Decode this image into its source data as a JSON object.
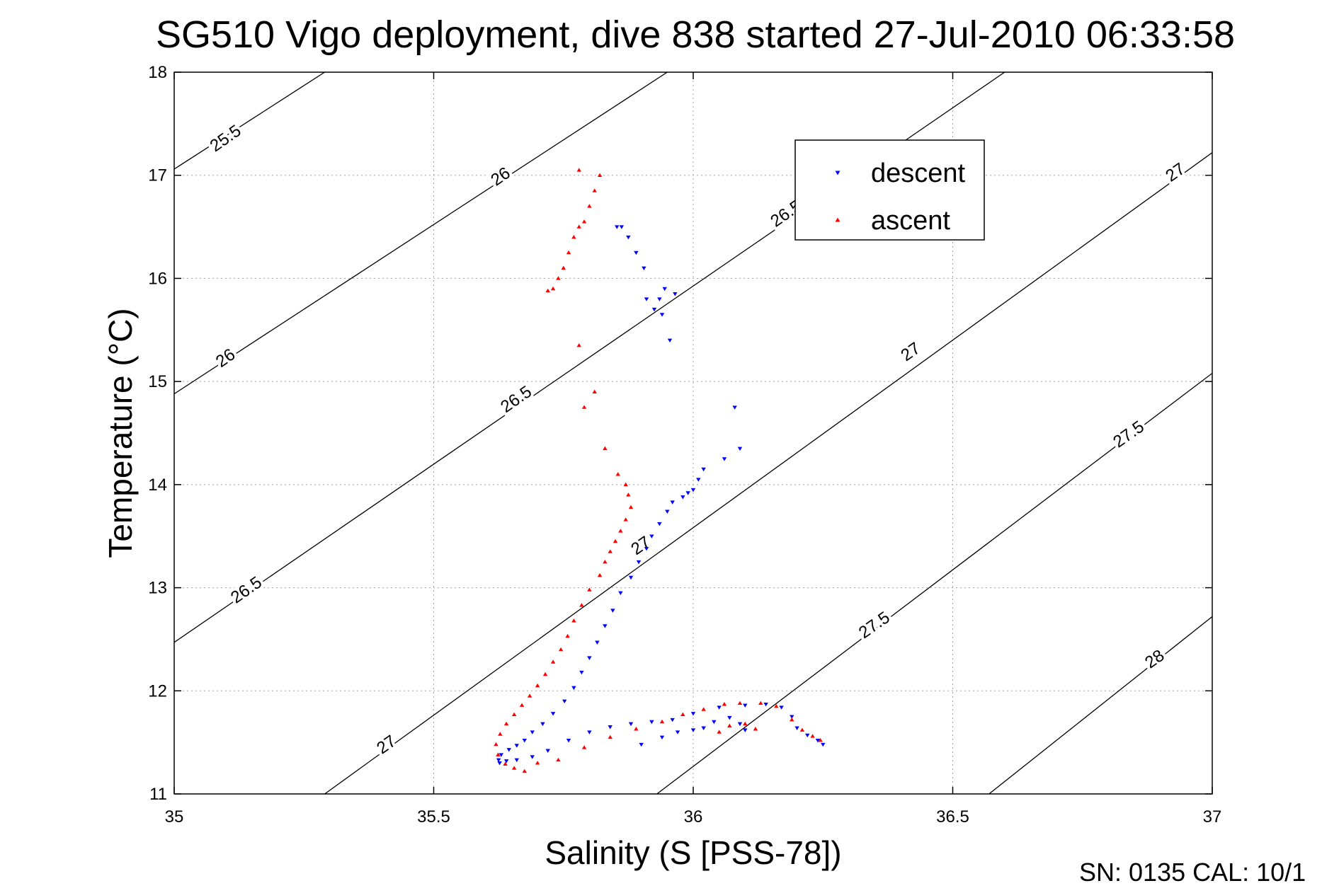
{
  "chart_data": {
    "type": "scatter",
    "title": "SG510 Vigo deployment, dive 838 started 27-Jul-2010 06:33:58",
    "xlabel": "Salinity (S [PSS-78])",
    "ylabel": "Temperature (°C)",
    "xlim": [
      35,
      37
    ],
    "ylim": [
      11,
      18
    ],
    "xticks": [
      "35",
      "35.5",
      "36",
      "36.5",
      "37"
    ],
    "yticks": [
      "11",
      "12",
      "13",
      "14",
      "15",
      "16",
      "17",
      "18"
    ],
    "grid": true,
    "legend_position": "top-right",
    "footer": "SN: 0135  CAL: 10/1",
    "isopycnal_contours": [
      {
        "label": "25.5",
        "points": [
          [
            35.0,
            17.06
          ],
          [
            35.29,
            18.0
          ]
        ]
      },
      {
        "label": "26",
        "points": [
          [
            35.0,
            14.88
          ],
          [
            35.95,
            18.0
          ]
        ]
      },
      {
        "label": "26.5",
        "points": [
          [
            35.0,
            12.47
          ],
          [
            36.6,
            18.0
          ]
        ]
      },
      {
        "label": "27",
        "points": [
          [
            35.29,
            11.0
          ],
          [
            37.0,
            17.22
          ]
        ]
      },
      {
        "label": "27.5",
        "points": [
          [
            35.93,
            11.0
          ],
          [
            37.0,
            15.08
          ]
        ]
      },
      {
        "label": "28",
        "points": [
          [
            36.57,
            11.0
          ],
          [
            37.0,
            12.72
          ]
        ]
      }
    ],
    "contour_labels": [
      {
        "text": "25.5",
        "x": 35.1,
        "y": 17.35
      },
      {
        "text": "26",
        "x": 35.63,
        "y": 16.98
      },
      {
        "text": "26.5",
        "x": 36.18,
        "y": 16.62
      },
      {
        "text": "27",
        "x": 36.93,
        "y": 17.02
      },
      {
        "text": "26",
        "x": 35.1,
        "y": 15.22
      },
      {
        "text": "27",
        "x": 36.42,
        "y": 15.28
      },
      {
        "text": "26.5",
        "x": 35.66,
        "y": 14.82
      },
      {
        "text": "27.5",
        "x": 36.84,
        "y": 14.48
      },
      {
        "text": "27",
        "x": 35.9,
        "y": 13.4
      },
      {
        "text": "26.5",
        "x": 35.14,
        "y": 12.97
      },
      {
        "text": "27.5",
        "x": 36.35,
        "y": 12.63
      },
      {
        "text": "28",
        "x": 36.89,
        "y": 12.3
      },
      {
        "text": "27",
        "x": 35.41,
        "y": 11.47
      }
    ],
    "series": [
      {
        "name": "descent",
        "color": "#0000ff",
        "marker": "triangle-down",
        "x": [
          35.853,
          35.862,
          35.875,
          35.89,
          35.905,
          35.91,
          35.925,
          35.935,
          35.94,
          35.955,
          35.945,
          35.965,
          36.08,
          36.09,
          36.06,
          36.02,
          36.01,
          36.0,
          35.99,
          35.98,
          35.96,
          35.95,
          35.935,
          35.92,
          35.91,
          35.895,
          35.88,
          35.86,
          35.845,
          35.83,
          35.815,
          35.8,
          35.785,
          35.77,
          35.752,
          35.73,
          35.71,
          35.69,
          35.675,
          35.66,
          35.645,
          35.63,
          35.625,
          35.627,
          35.64,
          35.66,
          35.69,
          35.72,
          35.76,
          35.8,
          35.84,
          35.88,
          35.92,
          35.96,
          36.0,
          36.05,
          36.1,
          36.14,
          36.17,
          36.19,
          36.2,
          36.22,
          36.24,
          36.25,
          35.9,
          35.94,
          35.97,
          36.0,
          36.02,
          36.04,
          36.07,
          36.09,
          36.1
        ],
        "y": [
          16.5,
          16.5,
          16.4,
          16.25,
          16.1,
          15.8,
          15.7,
          15.8,
          15.65,
          15.4,
          15.9,
          15.85,
          14.75,
          14.35,
          14.25,
          14.15,
          14.05,
          13.95,
          13.92,
          13.88,
          13.83,
          13.74,
          13.62,
          13.5,
          13.38,
          13.25,
          13.1,
          12.95,
          12.78,
          12.63,
          12.47,
          12.32,
          12.18,
          12.03,
          11.9,
          11.78,
          11.68,
          11.6,
          11.52,
          11.47,
          11.43,
          11.38,
          11.33,
          11.3,
          11.32,
          11.33,
          11.36,
          11.42,
          11.52,
          11.6,
          11.65,
          11.68,
          11.7,
          11.72,
          11.78,
          11.84,
          11.86,
          11.87,
          11.84,
          11.75,
          11.64,
          11.57,
          11.52,
          11.48,
          11.48,
          11.55,
          11.6,
          11.62,
          11.64,
          11.7,
          11.74,
          11.68,
          11.62
        ]
      },
      {
        "name": "ascent",
        "color": "#ff0000",
        "marker": "triangle-up",
        "x": [
          35.78,
          35.82,
          35.81,
          35.8,
          35.79,
          35.78,
          35.77,
          35.76,
          35.75,
          35.74,
          35.73,
          35.72,
          35.78,
          35.79,
          35.81,
          35.83,
          35.855,
          35.87,
          35.875,
          35.88,
          35.87,
          35.86,
          35.85,
          35.84,
          35.83,
          35.82,
          35.8,
          35.785,
          35.77,
          35.758,
          35.745,
          35.73,
          35.715,
          35.7,
          35.685,
          35.67,
          35.655,
          35.64,
          35.628,
          35.62,
          35.624,
          35.638,
          35.655,
          35.675,
          35.7,
          35.74,
          35.79,
          35.84,
          35.89,
          35.94,
          35.98,
          36.02,
          36.06,
          36.09,
          36.13,
          36.16,
          36.19,
          36.21,
          36.23,
          36.245,
          36.07,
          36.05,
          36.1,
          36.12
        ],
        "y": [
          17.05,
          17.0,
          16.85,
          16.7,
          16.55,
          16.5,
          16.4,
          16.25,
          16.1,
          16.0,
          15.9,
          15.88,
          15.35,
          14.75,
          14.9,
          14.35,
          14.1,
          14.0,
          13.9,
          13.78,
          13.66,
          13.55,
          13.45,
          13.35,
          13.25,
          13.12,
          12.98,
          12.83,
          12.68,
          12.53,
          12.4,
          12.28,
          12.16,
          12.05,
          11.95,
          11.86,
          11.77,
          11.68,
          11.58,
          11.48,
          11.38,
          11.29,
          11.25,
          11.22,
          11.3,
          11.33,
          11.45,
          11.55,
          11.63,
          11.7,
          11.77,
          11.82,
          11.87,
          11.88,
          11.88,
          11.85,
          11.72,
          11.62,
          11.56,
          11.52,
          11.66,
          11.6,
          11.68,
          11.63
        ]
      }
    ]
  }
}
